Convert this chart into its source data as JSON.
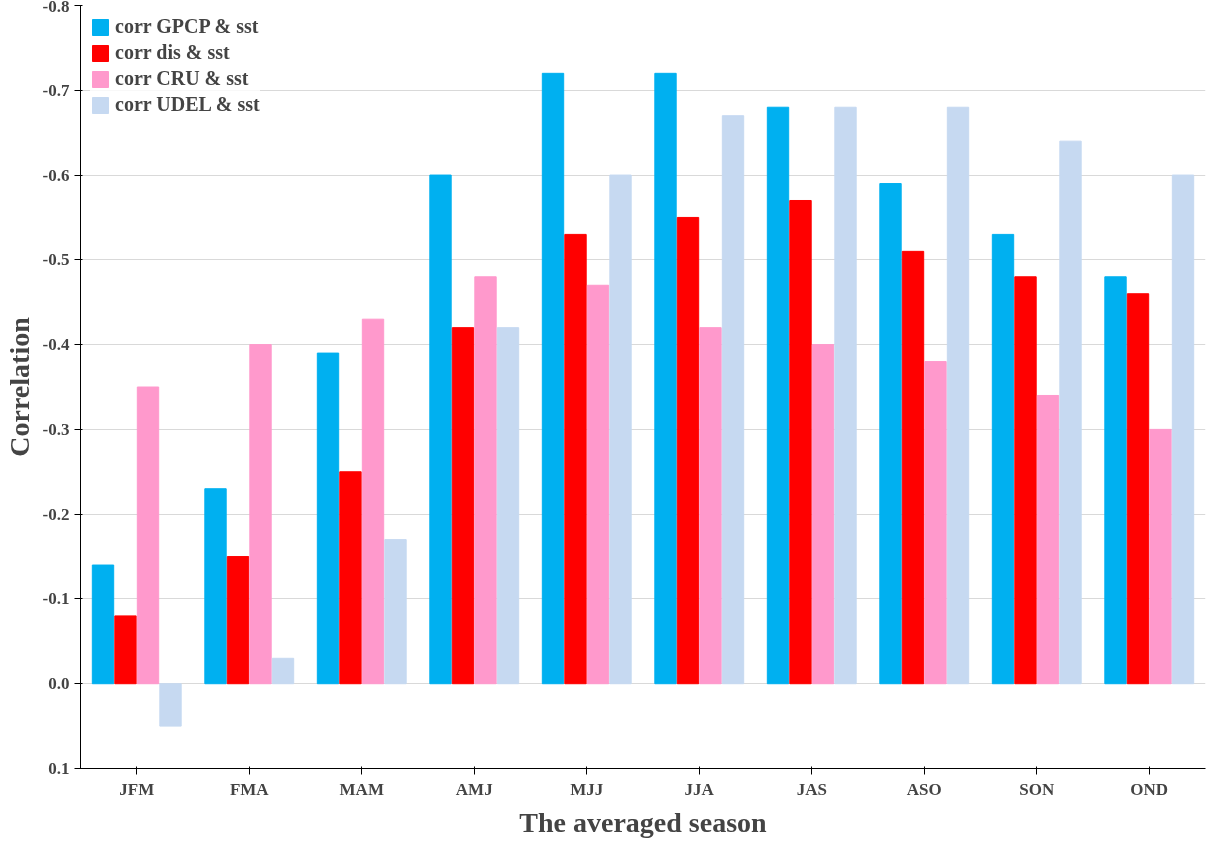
{
  "chart_data": {
    "type": "bar",
    "xlabel": "The averaged season",
    "ylabel": "Correlation",
    "categories": [
      "JFM",
      "FMA",
      "MAM",
      "AMJ",
      "MJJ",
      "JJA",
      "JAS",
      "ASO",
      "SON",
      "OND"
    ],
    "series": [
      {
        "name": "corr GPCP & sst",
        "color": "#00b0f0",
        "values": [
          -0.14,
          -0.23,
          -0.39,
          -0.6,
          -0.72,
          -0.72,
          -0.68,
          -0.59,
          -0.53,
          -0.48
        ]
      },
      {
        "name": "corr dis & sst",
        "color": "#ff0000",
        "values": [
          -0.08,
          -0.15,
          -0.25,
          -0.42,
          -0.53,
          -0.55,
          -0.57,
          -0.51,
          -0.48,
          -0.46
        ]
      },
      {
        "name": "corr CRU & sst",
        "color": "#ff99cc",
        "values": [
          -0.35,
          -0.4,
          -0.43,
          -0.48,
          -0.47,
          -0.42,
          -0.4,
          -0.38,
          -0.34,
          -0.3
        ]
      },
      {
        "name": "corr UDEL & sst",
        "color": "#c6d9f1",
        "values": [
          0.05,
          -0.03,
          -0.17,
          -0.42,
          -0.6,
          -0.67,
          -0.68,
          -0.68,
          -0.64,
          -0.6
        ]
      }
    ],
    "ylim": [
      0.1,
      -0.8
    ],
    "yticks": [
      {
        "value": 0.1,
        "label": "0.1"
      },
      {
        "value": 0,
        "label": "0.0"
      },
      {
        "value": -0.1,
        "label": "-0.1"
      },
      {
        "value": -0.2,
        "label": "-0.2"
      },
      {
        "value": -0.3,
        "label": "-0.3"
      },
      {
        "value": -0.4,
        "label": "-0.4"
      },
      {
        "value": -0.5,
        "label": "-0.5"
      },
      {
        "value": -0.6,
        "label": "-0.6"
      },
      {
        "value": -0.7,
        "label": "-0.7"
      },
      {
        "value": -0.8,
        "label": "-0.8"
      }
    ],
    "grid": "y",
    "legend": "top left"
  }
}
